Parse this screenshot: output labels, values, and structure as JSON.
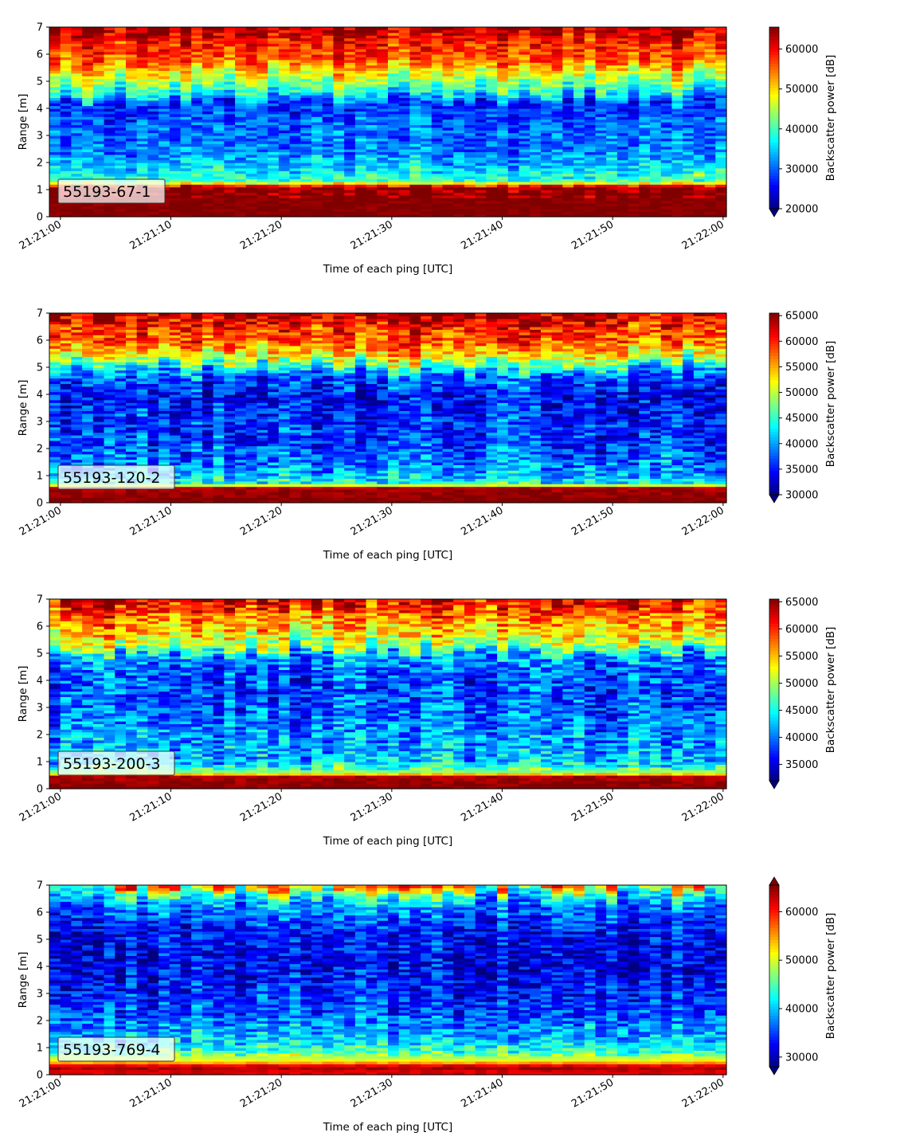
{
  "chart_data": [
    {
      "type": "heatmap",
      "label": "55193-67-1",
      "xlabel": "Time of each ping [UTC]",
      "ylabel": "Range [m]",
      "xticks": [
        "21:21:00",
        "21:21:10",
        "21:21:20",
        "21:21:30",
        "21:21:40",
        "21:21:50",
        "21:22:00"
      ],
      "x_range_s": [
        -1,
        60.3
      ],
      "ylim": [
        0,
        7
      ],
      "yticks": [
        0,
        1,
        2,
        3,
        4,
        5,
        6,
        7
      ],
      "colorbar": {
        "label": "Backscatter power [dB]",
        "colormap": "jet",
        "vmin": 20000,
        "vmax": 65500,
        "ticks": [
          20000,
          30000,
          40000,
          50000,
          60000
        ],
        "extend": "min"
      },
      "profile": [
        {
          "range_m": 0.2,
          "value": 65500
        },
        {
          "range_m": 1.1,
          "value": 65000
        },
        {
          "range_m": 1.3,
          "value": 41000
        },
        {
          "range_m": 1.6,
          "value": 37000
        },
        {
          "range_m": 2.5,
          "value": 31000
        },
        {
          "range_m": 3.5,
          "value": 30000
        },
        {
          "range_m": 4.2,
          "value": 27000
        },
        {
          "range_m": 4.6,
          "value": 38000
        },
        {
          "range_m": 5.2,
          "value": 46000
        },
        {
          "range_m": 5.8,
          "value": 56000
        },
        {
          "range_m": 6.5,
          "value": 59000
        },
        {
          "range_m": 7.0,
          "value": 64000
        }
      ]
    },
    {
      "type": "heatmap",
      "label": "55193-120-2",
      "xlabel": "Time of each ping [UTC]",
      "ylabel": "Range [m]",
      "xticks": [
        "21:21:00",
        "21:21:10",
        "21:21:20",
        "21:21:30",
        "21:21:40",
        "21:21:50",
        "21:22:00"
      ],
      "x_range_s": [
        -1,
        60.3
      ],
      "ylim": [
        0,
        7
      ],
      "yticks": [
        0,
        1,
        2,
        3,
        4,
        5,
        6,
        7
      ],
      "colorbar": {
        "label": "Backscatter power [dB]",
        "colormap": "jet",
        "vmin": 30000,
        "vmax": 65500,
        "ticks": [
          30000,
          35000,
          40000,
          45000,
          50000,
          55000,
          60000,
          65000
        ],
        "extend": "min"
      },
      "profile": [
        {
          "range_m": 0.1,
          "value": 65500
        },
        {
          "range_m": 0.55,
          "value": 64000
        },
        {
          "range_m": 0.7,
          "value": 44000
        },
        {
          "range_m": 1.2,
          "value": 40000
        },
        {
          "range_m": 2.0,
          "value": 37000
        },
        {
          "range_m": 3.0,
          "value": 36000
        },
        {
          "range_m": 4.0,
          "value": 34500
        },
        {
          "range_m": 4.8,
          "value": 39000
        },
        {
          "range_m": 5.3,
          "value": 50000
        },
        {
          "range_m": 5.9,
          "value": 58000
        },
        {
          "range_m": 6.5,
          "value": 60000
        },
        {
          "range_m": 7.0,
          "value": 64000
        }
      ]
    },
    {
      "type": "heatmap",
      "label": "55193-200-3",
      "xlabel": "Time of each ping [UTC]",
      "ylabel": "Range [m]",
      "xticks": [
        "21:21:00",
        "21:21:10",
        "21:21:20",
        "21:21:30",
        "21:21:40",
        "21:21:50",
        "21:22:00"
      ],
      "x_range_s": [
        -1,
        60.3
      ],
      "ylim": [
        0,
        7
      ],
      "yticks": [
        0,
        1,
        2,
        3,
        4,
        5,
        6,
        7
      ],
      "colorbar": {
        "label": "Backscatter power [dB]",
        "colormap": "jet",
        "vmin": 32000,
        "vmax": 65500,
        "ticks": [
          35000,
          40000,
          45000,
          50000,
          55000,
          60000,
          65000
        ],
        "extend": "min"
      },
      "profile": [
        {
          "range_m": 0.1,
          "value": 65500
        },
        {
          "range_m": 0.45,
          "value": 64000
        },
        {
          "range_m": 0.6,
          "value": 50000
        },
        {
          "range_m": 1.0,
          "value": 43000
        },
        {
          "range_m": 2.0,
          "value": 41000
        },
        {
          "range_m": 3.0,
          "value": 39500
        },
        {
          "range_m": 4.0,
          "value": 38500
        },
        {
          "range_m": 4.9,
          "value": 41000
        },
        {
          "range_m": 5.3,
          "value": 50000
        },
        {
          "range_m": 5.9,
          "value": 55000
        },
        {
          "range_m": 6.5,
          "value": 58000
        },
        {
          "range_m": 7.0,
          "value": 63000
        }
      ]
    },
    {
      "type": "heatmap",
      "label": "55193-769-4",
      "xlabel": "Time of each ping [UTC]",
      "ylabel": "Range [m]",
      "xticks": [
        "21:21:00",
        "21:21:10",
        "21:21:20",
        "21:21:30",
        "21:21:40",
        "21:21:50",
        "21:22:00"
      ],
      "x_range_s": [
        -1,
        60.3
      ],
      "ylim": [
        0,
        7
      ],
      "yticks": [
        0,
        1,
        2,
        3,
        4,
        5,
        6,
        7
      ],
      "colorbar": {
        "label": "Backscatter power [dB]",
        "colormap": "jet",
        "vmin": 28000,
        "vmax": 65500,
        "ticks": [
          30000,
          40000,
          50000,
          60000
        ],
        "extend": "both"
      },
      "profile": [
        {
          "range_m": 0.1,
          "value": 62000
        },
        {
          "range_m": 0.3,
          "value": 64500
        },
        {
          "range_m": 0.5,
          "value": 52000
        },
        {
          "range_m": 0.9,
          "value": 44000
        },
        {
          "range_m": 1.5,
          "value": 39000
        },
        {
          "range_m": 2.5,
          "value": 35000
        },
        {
          "range_m": 3.5,
          "value": 33000
        },
        {
          "range_m": 4.5,
          "value": 32000
        },
        {
          "range_m": 5.5,
          "value": 34000
        },
        {
          "range_m": 6.3,
          "value": 38000
        },
        {
          "range_m": 6.8,
          "value": 46000
        },
        {
          "range_m": 7.0,
          "value": 58000
        }
      ]
    }
  ]
}
